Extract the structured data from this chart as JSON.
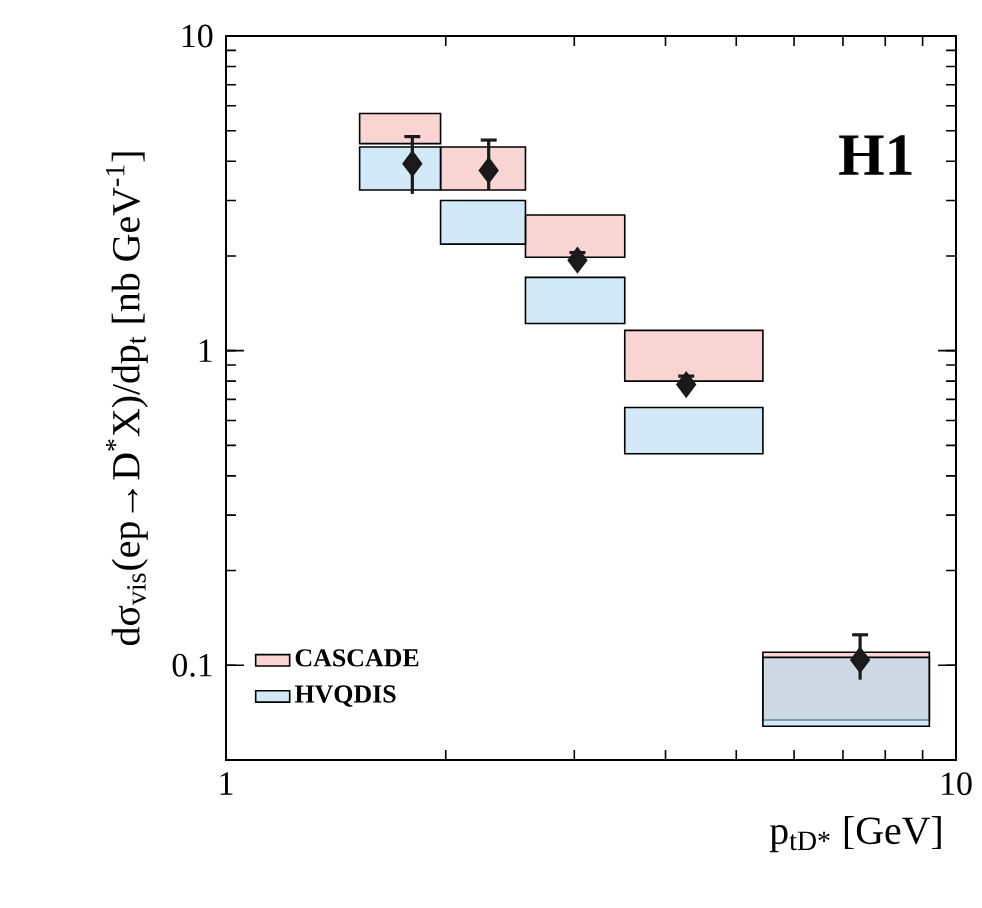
{
  "chart_data": {
    "type": "bar",
    "xlabel": "p$_{tD*}$ [GeV]",
    "ylabel": "dσ$_{vis}$(ep→D$^{*}$X)/dp$_{t}$ [nb GeV$^{-1}$]",
    "log": "xy",
    "xlim": [
      1,
      10
    ],
    "ylim": [
      0.05,
      10
    ],
    "xticks": [
      1,
      10
    ],
    "yticks": [
      0.1,
      1,
      10
    ],
    "legend": "bottom left",
    "marker": "diamond",
    "annotations": [
      "**H1**"
    ],
    "series": [
      {
        "name": "CASCADE",
        "color": "#f4b8b4",
        "x": [
          1.732,
          2.236,
          2.958,
          4.183,
          7.071
        ],
        "base": [
          4.55,
          3.24,
          1.98,
          0.8,
          0.067
        ],
        "values": [
          1.12,
          1.2,
          0.72,
          0.36,
          0.043
        ]
      },
      {
        "name": "HVQDIS",
        "color": "#b4dcf2",
        "x": [
          1.732,
          2.236,
          2.958,
          4.183,
          7.071
        ],
        "base": [
          3.24,
          2.18,
          1.22,
          0.47,
          0.064
        ],
        "values": [
          1.2,
          0.82,
          0.49,
          0.19,
          0.042
        ]
      },
      {
        "type": "scatter",
        "color": "#1a1a1a",
        "x": [
          1.8,
          2.29,
          3.03,
          4.27,
          7.39
        ],
        "values": [
          3.93,
          3.74,
          1.94,
          0.78,
          0.104
        ],
        "errors": [
          [
            3.15,
            4.79
          ],
          [
            3.24,
            4.67
          ],
          [
            1.84,
            2.05
          ],
          [
            0.74,
            0.83
          ],
          [
            0.09,
            0.125
          ]
        ]
      }
    ]
  }
}
